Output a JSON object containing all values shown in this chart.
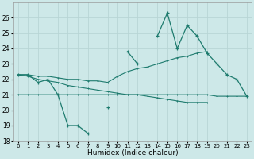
{
  "x": [
    0,
    1,
    2,
    3,
    4,
    5,
    6,
    7,
    8,
    9,
    10,
    11,
    12,
    13,
    14,
    15,
    16,
    17,
    18,
    19,
    20,
    21,
    22,
    23
  ],
  "line_main": [
    22.3,
    22.3,
    21.8,
    22.0,
    21.0,
    19.0,
    19.0,
    18.5,
    null,
    20.2,
    null,
    23.8,
    23.0,
    null,
    24.8,
    26.3,
    24.0,
    25.5,
    24.8,
    23.7,
    23.0,
    22.3,
    22.0,
    20.9
  ],
  "line_upper": [
    22.3,
    22.3,
    22.2,
    22.2,
    22.1,
    22.0,
    22.0,
    21.9,
    21.9,
    21.8,
    22.2,
    22.5,
    22.7,
    22.8,
    23.0,
    23.2,
    23.4,
    23.5,
    23.7,
    23.8,
    null,
    null,
    null,
    null
  ],
  "line_lower": [
    22.3,
    22.2,
    22.0,
    21.9,
    21.8,
    21.6,
    21.5,
    21.4,
    21.3,
    21.2,
    21.1,
    21.0,
    21.0,
    20.9,
    20.8,
    20.7,
    20.6,
    20.5,
    20.5,
    20.5,
    null,
    null,
    null,
    null
  ],
  "line_flat": [
    21.0,
    21.0,
    21.0,
    21.0,
    21.0,
    21.0,
    21.0,
    21.0,
    21.0,
    21.0,
    21.0,
    21.0,
    21.0,
    21.0,
    21.0,
    21.0,
    21.0,
    21.0,
    21.0,
    21.0,
    20.9,
    20.9,
    20.9,
    20.9
  ],
  "color": "#1e7b6e",
  "bg_color": "#cde8e8",
  "grid_color": "#b8d5d5",
  "ylim": [
    18,
    27
  ],
  "yticks": [
    18,
    19,
    20,
    21,
    22,
    23,
    24,
    25,
    26
  ],
  "xticks": [
    0,
    1,
    2,
    3,
    4,
    5,
    6,
    7,
    8,
    9,
    10,
    11,
    12,
    13,
    14,
    15,
    16,
    17,
    18,
    19,
    20,
    21,
    22,
    23
  ],
  "xlabel": "Humidex (Indice chaleur)"
}
